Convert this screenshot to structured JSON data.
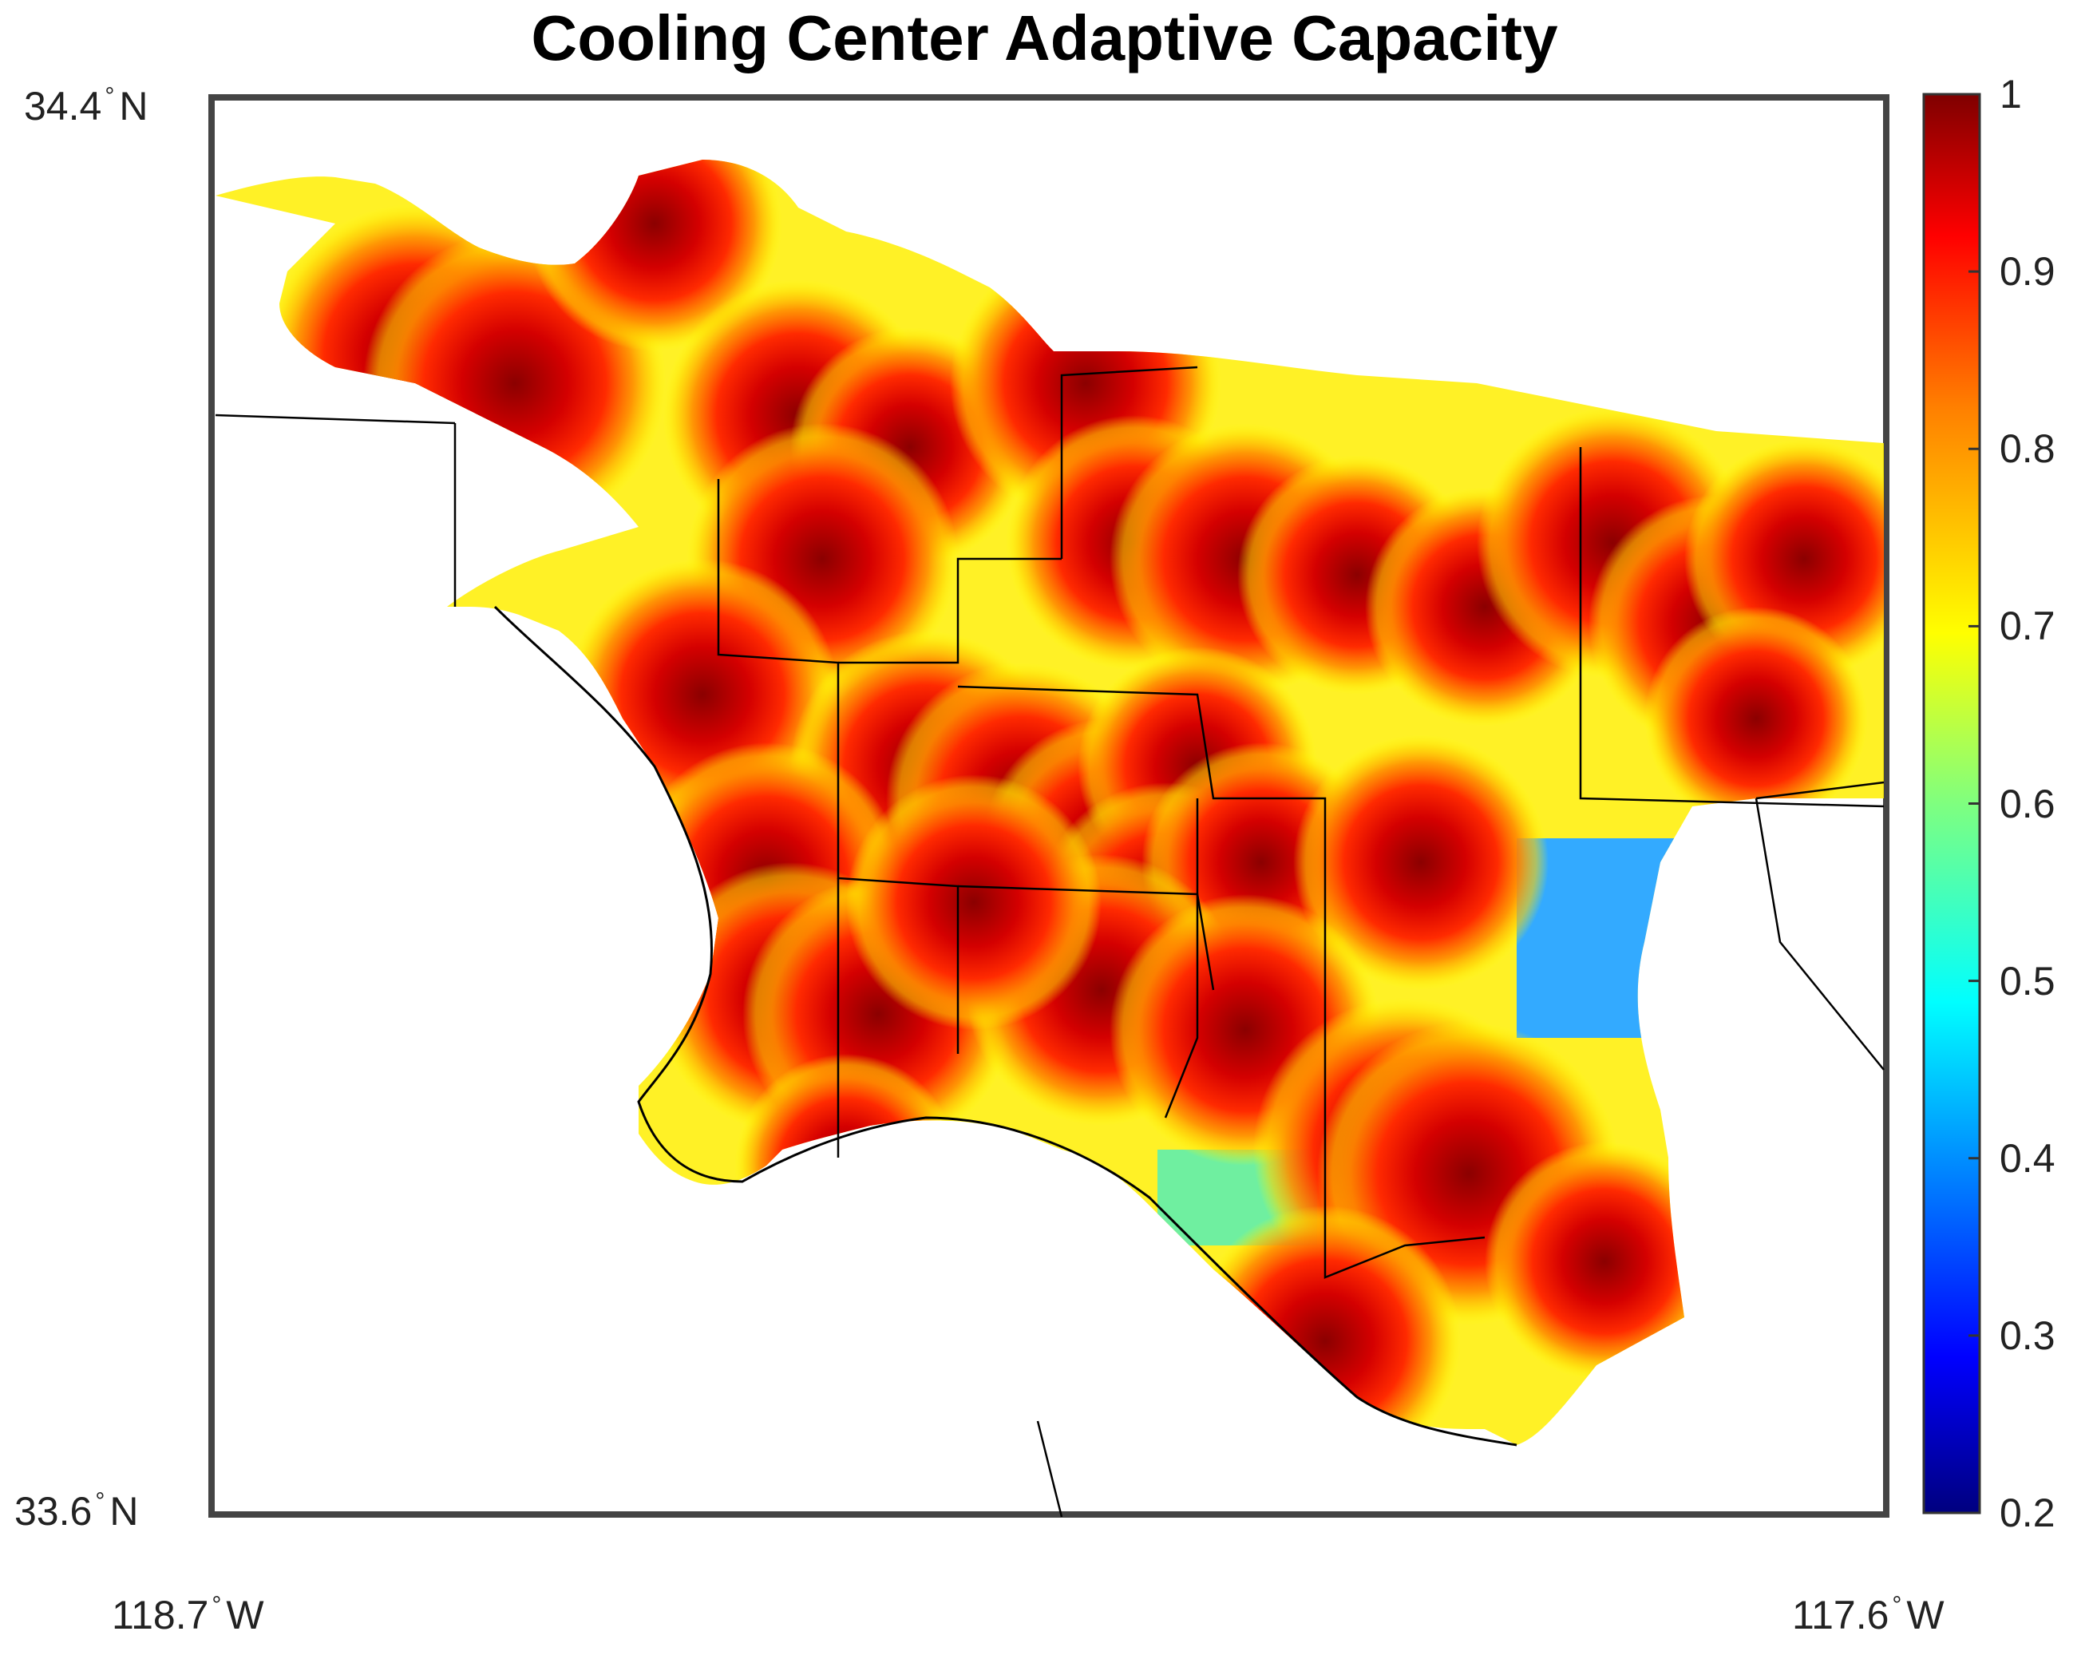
{
  "title": "Cooling Center Adaptive Capacity",
  "axes": {
    "lat_top": {
      "value": "34.4",
      "hemisphere": "N"
    },
    "lat_bottom": {
      "value": "33.6",
      "hemisphere": "N"
    },
    "lon_left": {
      "value": "118.7",
      "hemisphere": "W"
    },
    "lon_right": {
      "value": "117.6",
      "hemisphere": "W"
    },
    "degree_symbol": "°"
  },
  "colorbar": {
    "min": 0.2,
    "max": 1,
    "ticks": [
      "1",
      "0.9",
      "0.8",
      "0.7",
      "0.6",
      "0.5",
      "0.4",
      "0.3",
      "0.2"
    ],
    "colormap": "jet",
    "colors": [
      "#00007f",
      "#0000ff",
      "#007fff",
      "#00ffff",
      "#7fff7f",
      "#ffff00",
      "#ff7f00",
      "#ff0000",
      "#7f0000"
    ]
  },
  "map": {
    "land_fill": "#ffffff",
    "boundary_color": "#000000",
    "frame_color": "#444444"
  }
}
